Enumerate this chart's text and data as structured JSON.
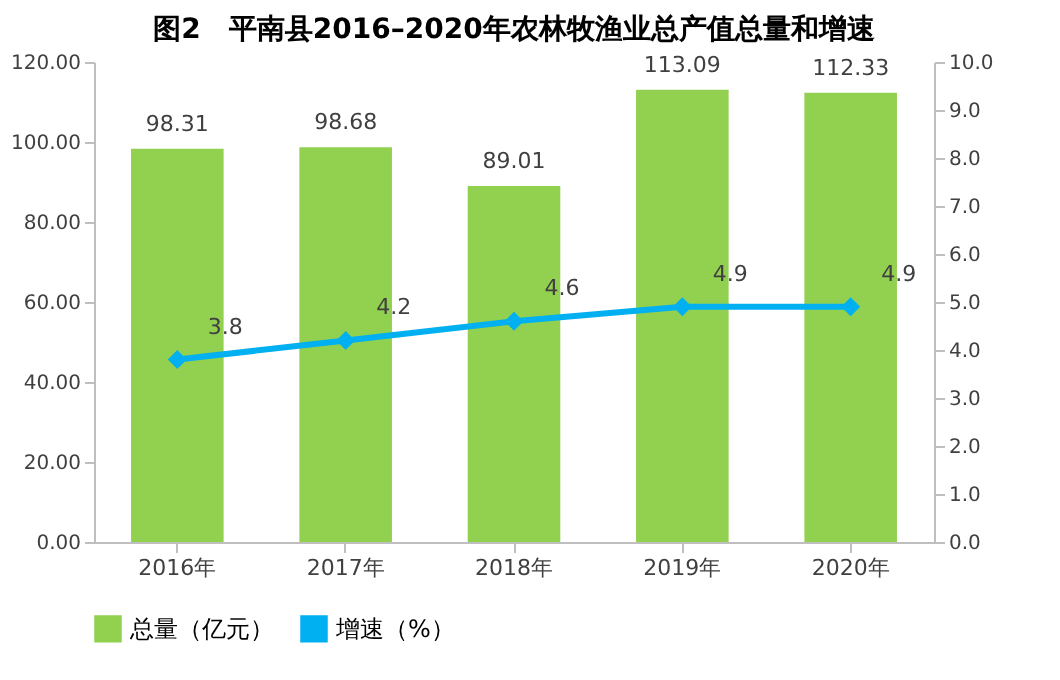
{
  "chart_data": {
    "type": "bar",
    "title": "图2　平南县2016–2020年农林牧渔业总产值总量和增速",
    "categories": [
      "2016年",
      "2017年",
      "2018年",
      "2019年",
      "2020年"
    ],
    "series": [
      {
        "name": "总量（亿元）",
        "color": "#92d050",
        "values": [
          98.31,
          98.68,
          89.01,
          113.09,
          112.33
        ]
      },
      {
        "name": "增速（%）",
        "type": "line",
        "axis": "y2",
        "color": "#00b0f0",
        "values": [
          3.8,
          4.2,
          4.6,
          4.9,
          4.9
        ],
        "marker": "diamond"
      }
    ],
    "ylim": [
      0,
      120
    ],
    "yticks": [
      {
        "value": 0,
        "label": "0.00"
      },
      {
        "value": 20,
        "label": "20.00"
      },
      {
        "value": 40,
        "label": "40.00"
      },
      {
        "value": 60,
        "label": "60.00"
      },
      {
        "value": 80,
        "label": "80.00"
      },
      {
        "value": 100,
        "label": "100.00"
      },
      {
        "value": 120,
        "label": "120.00"
      }
    ],
    "y2lim": [
      0,
      10
    ],
    "y2ticks": [
      {
        "value": 0,
        "label": "0.0"
      },
      {
        "value": 1,
        "label": "1.0"
      },
      {
        "value": 2,
        "label": "2.0"
      },
      {
        "value": 3,
        "label": "3.0"
      },
      {
        "value": 4,
        "label": "4.0"
      },
      {
        "value": 5,
        "label": "5.0"
      },
      {
        "value": 6,
        "label": "6.0"
      },
      {
        "value": 7,
        "label": "7.0"
      },
      {
        "value": 8,
        "label": "8.0"
      },
      {
        "value": 9,
        "label": "9.0"
      },
      {
        "value": 10,
        "label": "10.0"
      }
    ],
    "data_labels": true,
    "legend": "bottom",
    "grid": false
  }
}
